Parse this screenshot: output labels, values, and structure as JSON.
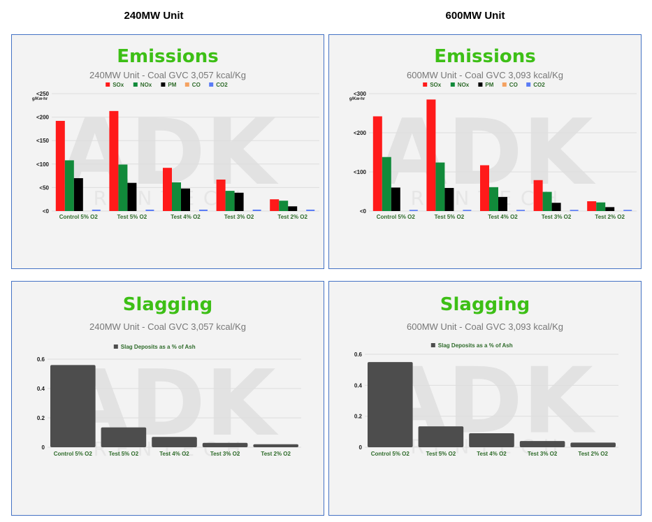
{
  "headers": {
    "left": "240MW Unit",
    "right": "600MW Unit"
  },
  "colors": {
    "SOx": "#ff1a1a",
    "NOx": "#118a3a",
    "PM": "#000000",
    "CO": "#f4a261",
    "CO2": "#5b7cf5",
    "slag": "#4d4d4d",
    "title_green": "#3dbf16",
    "frame": "#4472c4"
  },
  "watermark": {
    "big": "ADK",
    "small": "RENTECH"
  },
  "chart_data": [
    {
      "type": "bar",
      "title": "Emissions",
      "subtitle": "240MW Unit - Coal GVC 3,057 kcal/Kg",
      "unit_label": "g/Kw-hr",
      "categories": [
        "Control 5% O2",
        "Test 5% O2",
        "Test 4% O2",
        "Test 3% O2",
        "Test 2% O2"
      ],
      "ylim": [
        0,
        250
      ],
      "yticks": [
        0,
        50,
        100,
        150,
        200,
        250
      ],
      "ytick_labels": [
        "<0",
        "<50",
        "<100",
        "<150",
        "<200",
        "<250"
      ],
      "legend_position": "top-center",
      "grid": true,
      "series": [
        {
          "name": "SOx",
          "values": [
            192,
            213,
            92,
            67,
            25
          ]
        },
        {
          "name": "NOx",
          "values": [
            108,
            99,
            61,
            43,
            22
          ]
        },
        {
          "name": "PM",
          "values": [
            70,
            60,
            48,
            39,
            10
          ]
        },
        {
          "name": "CO",
          "values": [
            0,
            0,
            0,
            0,
            0
          ]
        },
        {
          "name": "CO2",
          "values": [
            3,
            3,
            3,
            3,
            3
          ]
        }
      ]
    },
    {
      "type": "bar",
      "title": "Emissions",
      "subtitle": "600MW Unit - Coal GVC 3,093 kcal/Kg",
      "unit_label": "g/Kw-hr",
      "categories": [
        "Control 5% O2",
        "Test 5% O2",
        "Test 4% O2",
        "Test 3% O2",
        "Test 2% O2"
      ],
      "ylim": [
        0,
        300
      ],
      "yticks": [
        0,
        100,
        200,
        300
      ],
      "ytick_labels": [
        "<0",
        "<100",
        "<200",
        "<300"
      ],
      "legend_position": "top-center",
      "grid": true,
      "series": [
        {
          "name": "SOx",
          "values": [
            242,
            285,
            117,
            79,
            25
          ]
        },
        {
          "name": "NOx",
          "values": [
            138,
            124,
            61,
            49,
            22
          ]
        },
        {
          "name": "PM",
          "values": [
            60,
            59,
            36,
            21,
            10
          ]
        },
        {
          "name": "CO",
          "values": [
            0,
            0,
            0,
            0,
            0
          ]
        },
        {
          "name": "CO2",
          "values": [
            3,
            3,
            3,
            3,
            3
          ]
        }
      ]
    },
    {
      "type": "bar",
      "title": "Slagging",
      "subtitle": "240MW Unit - Coal GVC 3,057 kcal/Kg",
      "unit_label": "",
      "categories": [
        "Control 5% O2",
        "Test 5% O2",
        "Test 4% O2",
        "Test 3% O2",
        "Test 2% O2"
      ],
      "ylim": [
        0,
        0.6
      ],
      "yticks": [
        0,
        0.2,
        0.4,
        0.6
      ],
      "ytick_labels": [
        "0",
        "0.2",
        "0.4",
        "0.6"
      ],
      "legend_position": "top-center",
      "grid": true,
      "series": [
        {
          "name": "Slag Deposits as a % of Ash",
          "values": [
            0.56,
            0.135,
            0.07,
            0.03,
            0.02
          ]
        }
      ]
    },
    {
      "type": "bar",
      "title": "Slagging",
      "subtitle": "600MW Unit - Coal GVC 3,093 kcal/Kg",
      "unit_label": "",
      "categories": [
        "Control 5% O2",
        "Test 5% O2",
        "Test 4% O2",
        "Test 3% O2",
        "Test 2% O2"
      ],
      "ylim": [
        0,
        0.6
      ],
      "yticks": [
        0,
        0.2,
        0.4,
        0.6
      ],
      "ytick_labels": [
        "0",
        "0.2",
        "0.4",
        "0.6"
      ],
      "legend_position": "top-center",
      "grid": true,
      "series": [
        {
          "name": "Slag Deposits as a % of Ash",
          "values": [
            0.55,
            0.135,
            0.09,
            0.04,
            0.03
          ]
        }
      ]
    }
  ]
}
